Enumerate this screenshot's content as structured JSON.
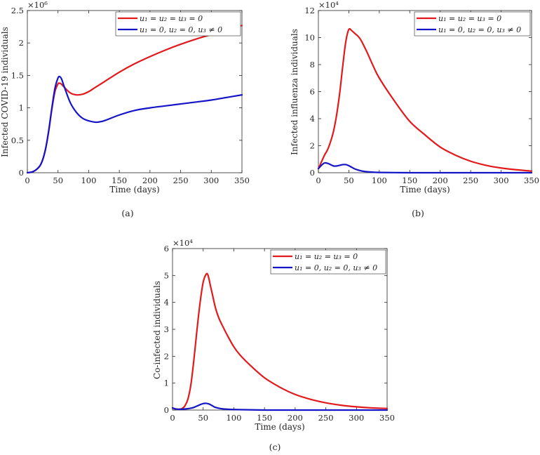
{
  "colors": {
    "red": "#e31a1c",
    "blue": "#1515c8",
    "axis": "#262626"
  },
  "chart_data": [
    {
      "type": "line",
      "id": "a",
      "caption": "(a)",
      "xlabel": "Time (days)",
      "ylabel": "Infected COVID-19 individuals",
      "exponent": "×10⁶",
      "xlim": [
        0,
        350
      ],
      "ylim": [
        0,
        2.5
      ],
      "xticks": [
        0,
        50,
        100,
        150,
        200,
        250,
        300,
        350
      ],
      "xticklabels": [
        "0",
        "50",
        "100",
        "150",
        "200",
        "250",
        "300",
        "350"
      ],
      "yticks": [
        0,
        0.5,
        1,
        1.5,
        2,
        2.5
      ],
      "yticklabels": [
        "0",
        "0.5",
        "1",
        "1.5",
        "2",
        "2.5"
      ],
      "legend_position": "top-right",
      "series": [
        {
          "name": "u₁ = u₂ = u₃ = 0",
          "color": "red",
          "x": [
            0,
            10,
            20,
            25,
            30,
            35,
            40,
            45,
            50,
            52,
            55,
            60,
            70,
            80,
            90,
            100,
            110,
            125,
            150,
            175,
            200,
            225,
            250,
            275,
            300,
            325,
            350
          ],
          "y": [
            0,
            0.02,
            0.1,
            0.2,
            0.38,
            0.65,
            0.98,
            1.25,
            1.37,
            1.38,
            1.37,
            1.32,
            1.23,
            1.2,
            1.21,
            1.25,
            1.31,
            1.4,
            1.55,
            1.68,
            1.79,
            1.89,
            1.98,
            2.06,
            2.13,
            2.2,
            2.27
          ]
        },
        {
          "name": "u₁ = 0, u₂ = 0, u₃ ≠ 0",
          "color": "blue",
          "x": [
            0,
            10,
            20,
            25,
            30,
            35,
            40,
            45,
            50,
            53,
            56,
            60,
            70,
            80,
            90,
            100,
            110,
            115,
            125,
            150,
            175,
            200,
            225,
            250,
            275,
            300,
            325,
            350
          ],
          "y": [
            0,
            0.02,
            0.1,
            0.2,
            0.38,
            0.66,
            1.0,
            1.3,
            1.46,
            1.48,
            1.44,
            1.33,
            1.08,
            0.93,
            0.84,
            0.8,
            0.78,
            0.78,
            0.8,
            0.89,
            0.96,
            1.0,
            1.03,
            1.06,
            1.09,
            1.12,
            1.16,
            1.2
          ]
        }
      ]
    },
    {
      "type": "line",
      "id": "b",
      "caption": "(b)",
      "xlabel": "Time (days)",
      "ylabel": "Infected influenza individuals",
      "exponent": "×10⁴",
      "xlim": [
        0,
        350
      ],
      "ylim": [
        0,
        12
      ],
      "xticks": [
        0,
        50,
        100,
        150,
        200,
        250,
        300,
        350
      ],
      "xticklabels": [
        "0",
        "50",
        "100",
        "150",
        "200",
        "250",
        "300",
        "350"
      ],
      "yticks": [
        0,
        2,
        4,
        6,
        8,
        10,
        12
      ],
      "yticklabels": [
        "0",
        "2",
        "4",
        "6",
        "8",
        "10",
        "12"
      ],
      "legend_position": "top-right",
      "series": [
        {
          "name": "u₁ = u₂ = u₃ = 0",
          "color": "red",
          "x": [
            0,
            5,
            10,
            15,
            20,
            25,
            30,
            35,
            40,
            45,
            50,
            55,
            60,
            65,
            70,
            80,
            90,
            100,
            125,
            150,
            175,
            200,
            225,
            250,
            275,
            300,
            325,
            350
          ],
          "y": [
            0.3,
            0.8,
            1.3,
            1.7,
            2.3,
            3.1,
            4.3,
            5.9,
            7.9,
            9.7,
            10.6,
            10.5,
            10.3,
            10.1,
            9.8,
            8.9,
            7.9,
            7.0,
            5.3,
            3.8,
            2.8,
            1.9,
            1.3,
            0.85,
            0.55,
            0.35,
            0.22,
            0.12
          ]
        },
        {
          "name": "u₁ = 0, u₂ = 0, u₃ ≠ 0",
          "color": "blue",
          "x": [
            0,
            5,
            10,
            15,
            20,
            25,
            30,
            35,
            40,
            45,
            50,
            55,
            60,
            70,
            80,
            90,
            100,
            125,
            150,
            200,
            250,
            300,
            350
          ],
          "y": [
            0.3,
            0.55,
            0.72,
            0.7,
            0.6,
            0.5,
            0.5,
            0.55,
            0.6,
            0.6,
            0.52,
            0.4,
            0.28,
            0.14,
            0.07,
            0.04,
            0.02,
            0.01,
            0.0,
            0.0,
            0.0,
            0.0,
            0.0
          ]
        }
      ]
    },
    {
      "type": "line",
      "id": "c",
      "caption": "(c)",
      "xlabel": "Time (days)",
      "ylabel": "Co-infected individuals",
      "exponent": "×10⁴",
      "xlim": [
        0,
        350
      ],
      "ylim": [
        0,
        6
      ],
      "xticks": [
        0,
        50,
        100,
        150,
        200,
        250,
        300,
        350
      ],
      "xticklabels": [
        "0",
        "50",
        "100",
        "150",
        "200",
        "250",
        "300",
        "350"
      ],
      "yticks": [
        0,
        1,
        2,
        3,
        4,
        5,
        6
      ],
      "yticklabels": [
        "0",
        "1",
        "2",
        "3",
        "4",
        "5",
        "6"
      ],
      "legend_position": "top-right",
      "series": [
        {
          "name": "u₁ = u₂ = u₃ = 0",
          "color": "red",
          "x": [
            0,
            5,
            10,
            15,
            20,
            25,
            30,
            35,
            40,
            45,
            50,
            55,
            58,
            62,
            65,
            70,
            75,
            80,
            90,
            100,
            110,
            125,
            150,
            175,
            200,
            225,
            250,
            275,
            300,
            325,
            350
          ],
          "y": [
            0.08,
            0.04,
            0.03,
            0.05,
            0.15,
            0.4,
            0.95,
            1.9,
            3.0,
            4.0,
            4.75,
            5.05,
            5.0,
            4.6,
            4.3,
            3.8,
            3.45,
            3.2,
            2.75,
            2.35,
            2.05,
            1.7,
            1.2,
            0.85,
            0.58,
            0.4,
            0.27,
            0.18,
            0.12,
            0.08,
            0.06
          ]
        },
        {
          "name": "u₁ = 0, u₂ = 0, u₃ ≠ 0",
          "color": "blue",
          "x": [
            0,
            5,
            10,
            15,
            20,
            25,
            30,
            35,
            40,
            45,
            50,
            55,
            60,
            65,
            70,
            80,
            90,
            100,
            125,
            150,
            200,
            250,
            300,
            350
          ],
          "y": [
            0.08,
            0.04,
            0.03,
            0.03,
            0.04,
            0.05,
            0.07,
            0.1,
            0.15,
            0.2,
            0.24,
            0.25,
            0.22,
            0.16,
            0.1,
            0.05,
            0.03,
            0.02,
            0.01,
            0.0,
            0.0,
            0.0,
            0.0,
            0.0
          ]
        }
      ]
    }
  ]
}
